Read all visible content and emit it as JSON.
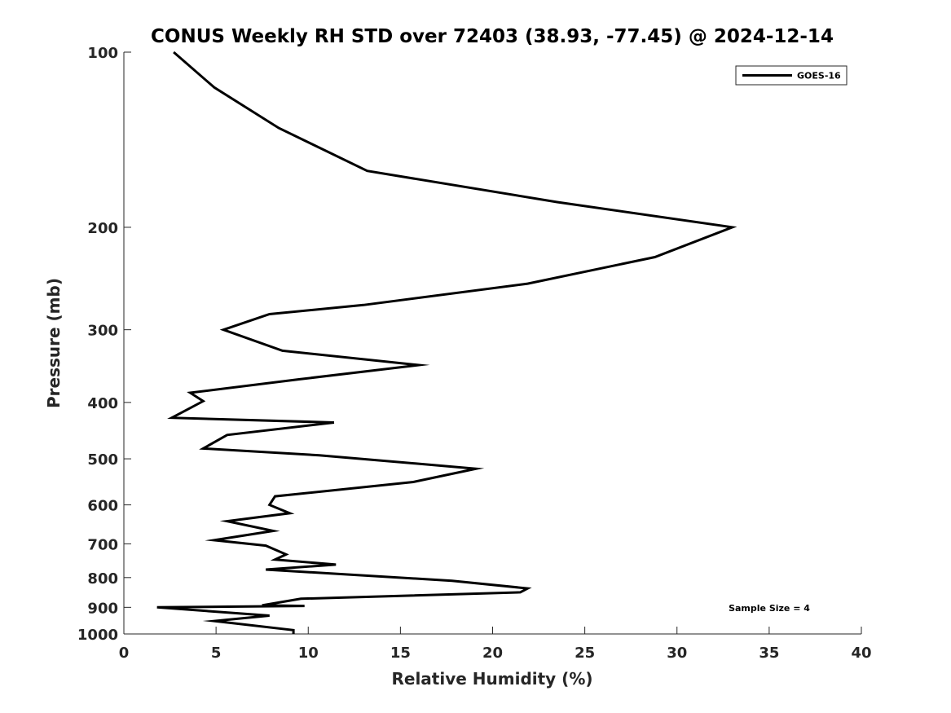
{
  "chart_data": {
    "type": "line",
    "title": "CONUS Weekly RH STD over 72403 (38.93, -77.45) @ 2024-12-14",
    "xlabel": "Relative Humidity (%)",
    "ylabel": "Pressure (mb)",
    "xlim": [
      0,
      40
    ],
    "ylim": [
      1000,
      100
    ],
    "yscale": "log",
    "y_reversed": true,
    "xticks": [
      0,
      5,
      10,
      15,
      20,
      25,
      30,
      35,
      40
    ],
    "yticks": [
      100,
      200,
      300,
      400,
      500,
      600,
      700,
      800,
      900,
      1000
    ],
    "grid": false,
    "legend_position": "top-right",
    "annotation": "Sample Size = 4",
    "series": [
      {
        "name": "GOES-16",
        "color": "#000000",
        "x": [
          2.7,
          4.9,
          8.4,
          13.2,
          23.5,
          33.0,
          28.8,
          21.9,
          13.0,
          7.9,
          5.4,
          8.6,
          16.0,
          9.5,
          3.6,
          4.3,
          2.6,
          11.4,
          5.6,
          4.3,
          10.6,
          19.1,
          15.7,
          8.2,
          7.9,
          9.0,
          5.6,
          8.1,
          4.9,
          7.7,
          8.8,
          8.2,
          11.5,
          7.7,
          17.8,
          21.9,
          21.5,
          9.6,
          7.5,
          9.8,
          1.8,
          7.9,
          4.9,
          9.2,
          9.2
        ],
        "y": [
          100,
          115,
          135,
          160,
          181,
          200,
          225,
          250,
          272,
          282,
          300,
          326,
          345,
          365,
          385,
          398,
          425,
          433,
          455,
          480,
          493,
          520,
          548,
          580,
          600,
          620,
          640,
          665,
          690,
          705,
          730,
          745,
          760,
          775,
          810,
          835,
          848,
          870,
          893,
          895,
          900,
          930,
          950,
          985,
          1000
        ]
      }
    ]
  }
}
